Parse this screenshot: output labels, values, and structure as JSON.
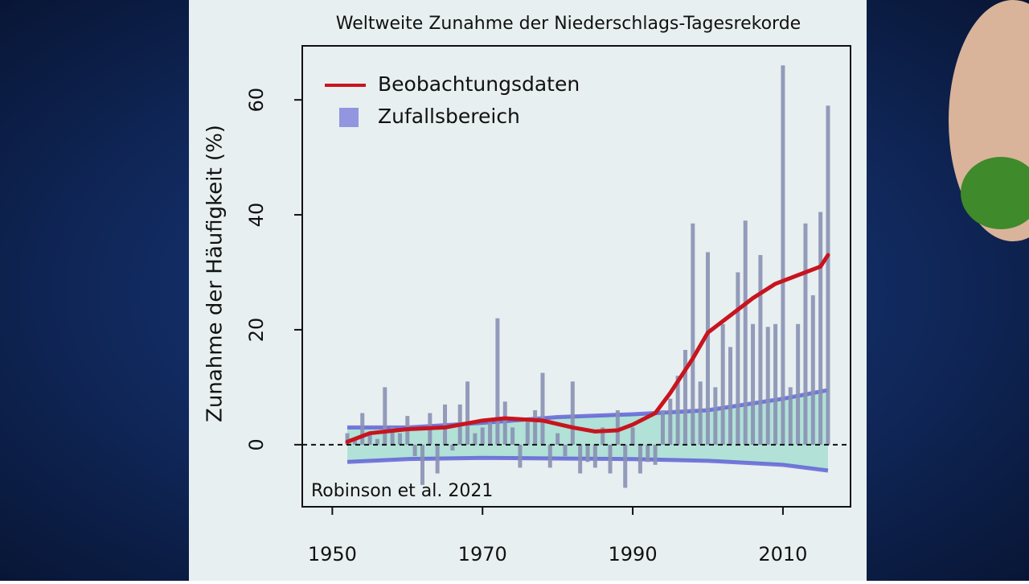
{
  "chart_data": {
    "type": "combo",
    "title": "Weltweite Zunahme der Niederschlags-Tagesrekorde",
    "y_label": "Zunahme der Häufigkeit (%)",
    "annotation": "Robinson et al. 2021",
    "xlim": [
      1946,
      2019
    ],
    "ylim": [
      -10.8,
      69.4
    ],
    "xticks": [
      1950,
      1970,
      1990,
      2010
    ],
    "yticks": [
      0,
      20,
      40,
      60
    ],
    "legend": "top-left",
    "series": [
      {
        "type": "bar",
        "color": "#8a91b4",
        "x": [
          1952,
          1953,
          1954,
          1955,
          1956,
          1957,
          1958,
          1959,
          1960,
          1961,
          1962,
          1963,
          1964,
          1965,
          1966,
          1967,
          1968,
          1969,
          1970,
          1971,
          1972,
          1973,
          1974,
          1975,
          1976,
          1977,
          1978,
          1979,
          1980,
          1981,
          1982,
          1983,
          1984,
          1985,
          1986,
          1987,
          1988,
          1989,
          1990,
          1991,
          1992,
          1993,
          1994,
          1995,
          1996,
          1997,
          1998,
          1999,
          2000,
          2001,
          2002,
          2003,
          2004,
          2005,
          2006,
          2007,
          2008,
          2009,
          2010,
          2011,
          2012,
          2013,
          2014,
          2015,
          2016
        ],
        "values": [
          2,
          1,
          5.5,
          2,
          1,
          10,
          3,
          2,
          5,
          -2,
          -7,
          5.5,
          -5,
          7,
          -1,
          7,
          11,
          2,
          3,
          4,
          22,
          7.5,
          3,
          -4,
          4,
          6,
          12.5,
          -4,
          2,
          -2,
          11,
          -5,
          -3,
          -4,
          3,
          -5,
          6,
          -7.5,
          3,
          -5,
          -3,
          -3.5,
          6,
          8,
          12,
          16.5,
          38.5,
          11,
          33.5,
          10,
          21,
          17,
          30,
          39,
          21,
          33,
          20.5,
          21,
          66,
          10,
          21,
          38.5,
          26,
          40.5,
          59
        ]
      },
      {
        "type": "band",
        "name": "Zufallsbereich",
        "color": "#5a5ad6",
        "fill": "#9fdccf",
        "x": [
          1952,
          1960,
          1970,
          1980,
          1990,
          2000,
          2010,
          2016
        ],
        "high": [
          3,
          3,
          3.8,
          4.8,
          5.3,
          6,
          8,
          9.5
        ],
        "low": [
          -3,
          -2.5,
          -2.3,
          -2.4,
          -2.5,
          -2.8,
          -3.5,
          -4.5
        ]
      },
      {
        "type": "line",
        "name": "Beobachtungsdaten",
        "color": "#c8141e",
        "x": [
          1952,
          1955,
          1960,
          1965,
          1970,
          1973,
          1978,
          1982,
          1985,
          1988,
          1990,
          1993,
          1995,
          1998,
          2000,
          2003,
          2006,
          2009,
          2013,
          2015,
          2016
        ],
        "values": [
          0.5,
          2,
          2.7,
          3,
          4.2,
          4.6,
          4.2,
          3,
          2.3,
          2.5,
          3.5,
          5.5,
          9,
          15,
          19.5,
          22.5,
          25.5,
          28,
          30,
          31,
          33
        ]
      }
    ]
  }
}
